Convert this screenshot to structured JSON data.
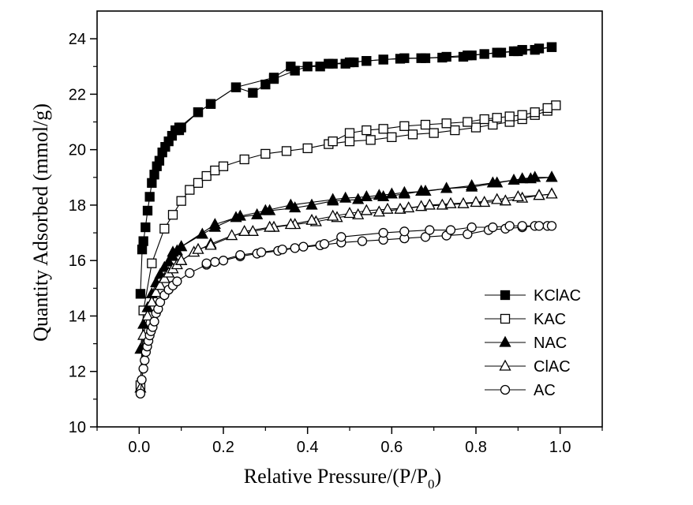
{
  "chart_data": {
    "type": "scatter",
    "xlabel": "Relative Pressure/(P/P",
    "xlabel_sub": "0",
    "xlabel_close": ")",
    "ylabel": "Quantity Adsorbed (mmol/g)",
    "xlim": [
      -0.1,
      1.1
    ],
    "ylim": [
      10,
      25
    ],
    "x_ticks": [
      0.0,
      0.2,
      0.4,
      0.6,
      0.8,
      1.0
    ],
    "x_tick_labels": [
      "0.0",
      "0.2",
      "0.4",
      "0.6",
      "0.8",
      "1.0"
    ],
    "y_ticks": [
      10,
      12,
      14,
      16,
      18,
      20,
      22,
      24
    ],
    "y_tick_labels": [
      "10",
      "12",
      "14",
      "16",
      "18",
      "20",
      "22",
      "24"
    ],
    "grid": false,
    "legend_position": "bottom-right",
    "series": [
      {
        "name": "KClAC",
        "marker": "square-filled",
        "adsorption": {
          "x": [
            0.003,
            0.007,
            0.01,
            0.015,
            0.02,
            0.025,
            0.03,
            0.036,
            0.042,
            0.048,
            0.055,
            0.062,
            0.07,
            0.078,
            0.086,
            0.095,
            0.14,
            0.17,
            0.23,
            0.27,
            0.3,
            0.32,
            0.37,
            0.4,
            0.45,
            0.49,
            0.51,
            0.54,
            0.58,
            0.63,
            0.68,
            0.73,
            0.78,
            0.82,
            0.86,
            0.9,
            0.94,
            0.98
          ],
          "y": [
            14.8,
            16.4,
            16.7,
            17.2,
            17.8,
            18.3,
            18.8,
            19.1,
            19.4,
            19.6,
            19.9,
            20.1,
            20.3,
            20.5,
            20.7,
            20.8,
            21.35,
            21.65,
            22.25,
            22.05,
            22.35,
            22.55,
            22.85,
            23.0,
            23.1,
            23.1,
            23.15,
            23.2,
            23.25,
            23.3,
            23.3,
            23.35,
            23.4,
            23.45,
            23.5,
            23.55,
            23.6,
            23.7
          ]
        },
        "desorption": {
          "x": [
            0.98,
            0.95,
            0.91,
            0.89,
            0.85,
            0.79,
            0.77,
            0.72,
            0.67,
            0.62,
            0.58,
            0.54,
            0.5,
            0.46,
            0.43,
            0.36,
            0.32,
            0.23,
            0.17,
            0.14,
            0.1,
            0.095
          ],
          "y": [
            23.7,
            23.65,
            23.6,
            23.55,
            23.5,
            23.4,
            23.35,
            23.32,
            23.3,
            23.28,
            23.25,
            23.2,
            23.15,
            23.1,
            23.0,
            23.0,
            22.6,
            22.25,
            21.65,
            21.35,
            20.8,
            20.7
          ]
        }
      },
      {
        "name": "KAC",
        "marker": "square-open",
        "adsorption": {
          "x": [
            0.003,
            0.01,
            0.03,
            0.06,
            0.08,
            0.1,
            0.12,
            0.14,
            0.16,
            0.18,
            0.2,
            0.25,
            0.3,
            0.35,
            0.4,
            0.45,
            0.5,
            0.55,
            0.6,
            0.65,
            0.7,
            0.75,
            0.8,
            0.84,
            0.88,
            0.91,
            0.94,
            0.97
          ],
          "y": [
            11.5,
            14.2,
            15.9,
            17.15,
            17.65,
            18.15,
            18.55,
            18.8,
            19.05,
            19.25,
            19.4,
            19.65,
            19.85,
            19.95,
            20.05,
            20.2,
            20.3,
            20.35,
            20.45,
            20.55,
            20.6,
            20.7,
            20.8,
            20.9,
            21.0,
            21.1,
            21.25,
            21.4
          ]
        },
        "desorption": {
          "x": [
            0.99,
            0.97,
            0.94,
            0.91,
            0.88,
            0.85,
            0.82,
            0.78,
            0.73,
            0.68,
            0.63,
            0.58,
            0.54,
            0.5,
            0.46
          ],
          "y": [
            21.6,
            21.5,
            21.35,
            21.25,
            21.2,
            21.15,
            21.1,
            21.0,
            20.95,
            20.9,
            20.85,
            20.75,
            20.7,
            20.6,
            20.3
          ]
        }
      },
      {
        "name": "NAC",
        "marker": "triangle-filled",
        "adsorption": {
          "x": [
            0.003,
            0.01,
            0.02,
            0.03,
            0.04,
            0.05,
            0.06,
            0.07,
            0.08,
            0.09,
            0.1,
            0.15,
            0.18,
            0.23,
            0.28,
            0.31,
            0.37,
            0.41,
            0.46,
            0.52,
            0.58,
            0.63,
            0.67,
            0.73,
            0.79,
            0.84,
            0.89,
            0.93,
            0.98
          ],
          "y": [
            12.8,
            13.7,
            14.3,
            14.8,
            15.2,
            15.5,
            15.75,
            15.95,
            16.15,
            16.35,
            16.5,
            16.95,
            17.2,
            17.55,
            17.65,
            17.8,
            17.9,
            18.0,
            18.15,
            18.2,
            18.3,
            18.4,
            18.5,
            18.6,
            18.7,
            18.8,
            18.9,
            18.95,
            19.0
          ]
        },
        "desorption": {
          "x": [
            0.98,
            0.94,
            0.91,
            0.85,
            0.79,
            0.73,
            0.68,
            0.63,
            0.6,
            0.57,
            0.54,
            0.49,
            0.46,
            0.36,
            0.3,
            0.24,
            0.18,
            0.1,
            0.08
          ],
          "y": [
            19.0,
            19.0,
            18.95,
            18.8,
            18.65,
            18.6,
            18.5,
            18.45,
            18.4,
            18.35,
            18.3,
            18.25,
            18.2,
            18.0,
            17.8,
            17.6,
            17.3,
            16.5,
            16.3
          ]
        }
      },
      {
        "name": "ClAC",
        "marker": "triangle-open",
        "adsorption": {
          "x": [
            0.003,
            0.01,
            0.02,
            0.03,
            0.04,
            0.05,
            0.06,
            0.07,
            0.08,
            0.09,
            0.1,
            0.13,
            0.17,
            0.22,
            0.27,
            0.32,
            0.37,
            0.42,
            0.47,
            0.52,
            0.57,
            0.62,
            0.67,
            0.72,
            0.77,
            0.82,
            0.87,
            0.91,
            0.95,
            0.98
          ],
          "y": [
            11.4,
            13.3,
            14.0,
            14.5,
            14.85,
            15.1,
            15.35,
            15.55,
            15.7,
            15.85,
            16.0,
            16.3,
            16.6,
            16.9,
            17.05,
            17.2,
            17.3,
            17.4,
            17.55,
            17.65,
            17.75,
            17.85,
            17.95,
            18.0,
            18.05,
            18.1,
            18.15,
            18.25,
            18.35,
            18.4
          ]
        },
        "desorption": {
          "x": [
            0.98,
            0.95,
            0.9,
            0.85,
            0.8,
            0.74,
            0.69,
            0.64,
            0.59,
            0.54,
            0.5,
            0.46,
            0.41,
            0.36,
            0.31,
            0.25,
            0.17,
            0.14,
            0.1
          ],
          "y": [
            18.4,
            18.35,
            18.3,
            18.2,
            18.1,
            18.05,
            18.0,
            17.9,
            17.85,
            17.8,
            17.7,
            17.6,
            17.45,
            17.3,
            17.2,
            17.05,
            16.55,
            16.4,
            16.0
          ]
        }
      },
      {
        "name": "AC",
        "marker": "circle-open",
        "adsorption": {
          "x": [
            0.003,
            0.006,
            0.01,
            0.013,
            0.016,
            0.019,
            0.022,
            0.025,
            0.028,
            0.032,
            0.036,
            0.04,
            0.045,
            0.05,
            0.06,
            0.07,
            0.08,
            0.09,
            0.12,
            0.16,
            0.2,
            0.24,
            0.28,
            0.33,
            0.37,
            0.43,
            0.48,
            0.53,
            0.58,
            0.63,
            0.68,
            0.73,
            0.78,
            0.83,
            0.87,
            0.91,
            0.94,
            0.97
          ],
          "y": [
            11.2,
            11.7,
            12.1,
            12.4,
            12.7,
            12.9,
            13.1,
            13.3,
            13.45,
            13.6,
            13.8,
            14.1,
            14.25,
            14.5,
            14.75,
            14.95,
            15.1,
            15.25,
            15.55,
            15.85,
            16.0,
            16.15,
            16.25,
            16.35,
            16.45,
            16.55,
            16.65,
            16.7,
            16.75,
            16.8,
            16.85,
            16.9,
            16.95,
            17.1,
            17.15,
            17.2,
            17.25,
            17.25
          ]
        },
        "desorption": {
          "x": [
            0.98,
            0.95,
            0.91,
            0.88,
            0.84,
            0.79,
            0.74,
            0.69,
            0.63,
            0.58,
            0.48,
            0.44,
            0.39,
            0.34,
            0.29,
            0.24,
            0.18,
            0.16
          ],
          "y": [
            17.25,
            17.25,
            17.25,
            17.25,
            17.2,
            17.2,
            17.1,
            17.1,
            17.05,
            17.0,
            16.85,
            16.6,
            16.5,
            16.4,
            16.3,
            16.2,
            15.95,
            15.9
          ]
        }
      }
    ]
  }
}
